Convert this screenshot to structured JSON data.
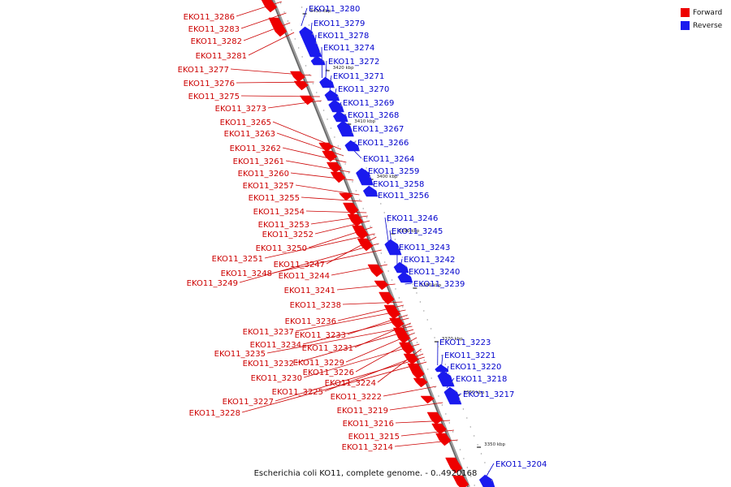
{
  "legend": {
    "forward_label": "Forward",
    "reverse_label": "Reverse",
    "forward_color": "#ee0000",
    "reverse_color": "#1a1aee"
  },
  "colors": {
    "forward_label": "#cc0000",
    "reverse_label": "#0000cc",
    "axis": "#888888"
  },
  "caption": "Escherichia coli KO11, complete genome. - 0..4920168",
  "scale_ticks": [
    "3430 kbp",
    "3420 kbp",
    "3410 kbp",
    "3400 kbp",
    "3390 kbp",
    "3380 kbp",
    "3370 kbp",
    "3360 kbp",
    "3350 kbp"
  ],
  "forward_genes": [
    "EKO11_3286",
    "EKO11_3283",
    "EKO11_3282",
    "EKO11_3281",
    "EKO11_3277",
    "EKO11_3276",
    "EKO11_3275",
    "EKO11_3273",
    "EKO11_3265",
    "EKO11_3263",
    "EKO11_3262",
    "EKO11_3261",
    "EKO11_3260",
    "EKO11_3257",
    "EKO11_3255",
    "EKO11_3254",
    "EKO11_3253",
    "EKO11_3252",
    "EKO11_3250",
    "EKO11_3251",
    "EKO11_3247",
    "EKO11_3248",
    "EKO11_3244",
    "EKO11_3249",
    "EKO11_3241",
    "EKO11_3238",
    "EKO11_3236",
    "EKO11_3237",
    "EKO11_3233",
    "EKO11_3234",
    "EKO11_3231",
    "EKO11_3235",
    "EKO11_3232",
    "EKO11_3229",
    "EKO11_3226",
    "EKO11_3230",
    "EKO11_3224",
    "EKO11_3225",
    "EKO11_3222",
    "EKO11_3227",
    "EKO11_3228",
    "EKO11_3219",
    "EKO11_3216",
    "EKO11_3215",
    "EKO11_3214"
  ],
  "reverse_genes": [
    "EKO11_3280",
    "EKO11_3279",
    "EKO11_3278",
    "EKO11_3274",
    "EKO11_3272",
    "EKO11_3271",
    "EKO11_3270",
    "EKO11_3269",
    "EKO11_3268",
    "EKO11_3267",
    "EKO11_3266",
    "EKO11_3264",
    "EKO11_3259",
    "EKO11_3258",
    "EKO11_3256",
    "EKO11_3246",
    "EKO11_3245",
    "EKO11_3243",
    "EKO11_3242",
    "EKO11_3240",
    "EKO11_3239",
    "EKO11_3223",
    "EKO11_3221",
    "EKO11_3220",
    "EKO11_3218",
    "EKO11_3217",
    "EKO11_3204"
  ]
}
